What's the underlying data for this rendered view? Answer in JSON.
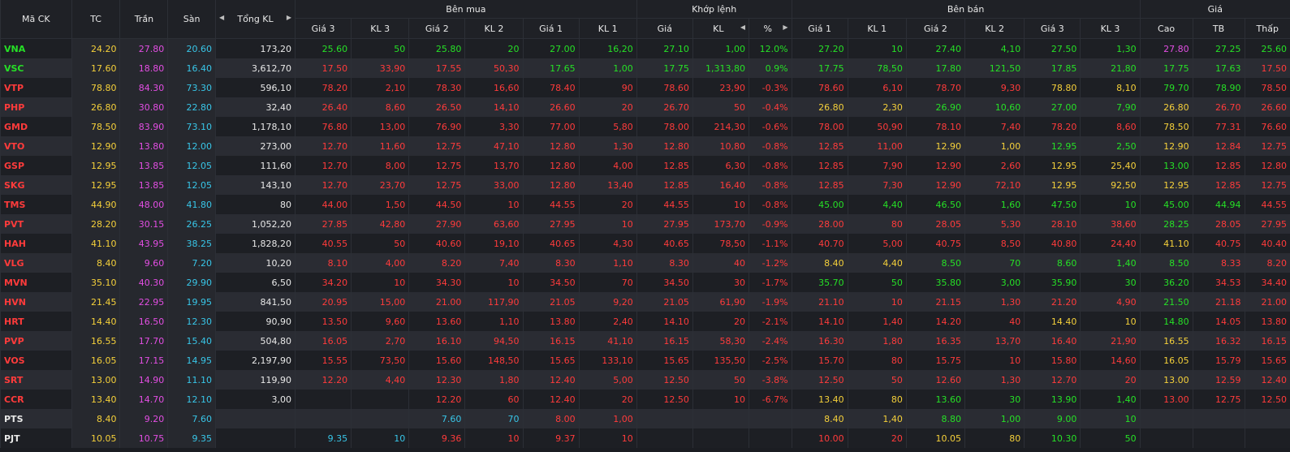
{
  "header": {
    "symbol": "Mã CK",
    "tc": "TC",
    "tran": "Trần",
    "san": "Sàn",
    "tong_kl": "Tổng KL",
    "ben_mua": "Bên mua",
    "khop_lenh": "Khớp lệnh",
    "ben_ban": "Bên bán",
    "gia_group": "Giá",
    "gia3": "Giá 3",
    "kl3": "KL 3",
    "gia2": "Giá 2",
    "kl2": "KL 2",
    "gia1": "Giá 1",
    "kl1": "KL 1",
    "khop_gia": "Giá",
    "khop_kl": "KL",
    "pct": "%",
    "cao": "Cao",
    "tb": "TB",
    "thap": "Thấp",
    "arrow_left": "◀",
    "arrow_right": "▶"
  },
  "colors": {
    "up": "#26e026",
    "down": "#ff3b3b",
    "ref": "#f5d03a",
    "ceil": "#e34ee3",
    "floor": "#38c6e8",
    "neutral": "#e8e8e8"
  },
  "rows": [
    {
      "sym": "VNA",
      "c": "u",
      "tc": "24.20",
      "tran": "27.80",
      "san": "20.60",
      "tkl": "173,20",
      "b3": "25.60",
      "b3c": "u",
      "bk3": "50",
      "b2": "25.80",
      "b2c": "u",
      "bk2": "20",
      "b1": "27.00",
      "b1c": "u",
      "bk1": "16,20",
      "mp": "27.10",
      "mpc": "u",
      "mk": "1,00",
      "pct": "12.0%",
      "a1": "27.20",
      "a1c": "u",
      "ak1": "10",
      "a2": "27.40",
      "a2c": "u",
      "ak2": "4,10",
      "a3": "27.50",
      "a3c": "u",
      "ak3": "1,30",
      "hi": "27.80",
      "hic": "c",
      "avg": "27.25",
      "avgc": "u",
      "lo": "25.60",
      "loc": "u"
    },
    {
      "sym": "VSC",
      "c": "u",
      "tc": "17.60",
      "tran": "18.80",
      "san": "16.40",
      "tkl": "3,612,70",
      "b3": "17.50",
      "b3c": "d",
      "bk3": "33,90",
      "b2": "17.55",
      "b2c": "d",
      "bk2": "50,30",
      "b1": "17.65",
      "b1c": "u",
      "bk1": "1,00",
      "mp": "17.75",
      "mpc": "u",
      "mk": "1,313,80",
      "pct": "0.9%",
      "a1": "17.75",
      "a1c": "u",
      "ak1": "78,50",
      "a2": "17.80",
      "a2c": "u",
      "ak2": "121,50",
      "a3": "17.85",
      "a3c": "u",
      "ak3": "21,80",
      "hi": "17.75",
      "hic": "u",
      "avg": "17.63",
      "avgc": "u",
      "lo": "17.50",
      "loc": "d"
    },
    {
      "sym": "VTP",
      "c": "d",
      "tc": "78.80",
      "tran": "84.30",
      "san": "73.30",
      "tkl": "596,10",
      "b3": "78.20",
      "b3c": "d",
      "bk3": "2,10",
      "b2": "78.30",
      "b2c": "d",
      "bk2": "16,60",
      "b1": "78.40",
      "b1c": "d",
      "bk1": "90",
      "mp": "78.60",
      "mpc": "d",
      "mk": "23,90",
      "pct": "-0.3%",
      "a1": "78.60",
      "a1c": "d",
      "ak1": "6,10",
      "a2": "78.70",
      "a2c": "d",
      "ak2": "9,30",
      "a3": "78.80",
      "a3c": "r",
      "ak3": "8,10",
      "hi": "79.70",
      "hic": "u",
      "avg": "78.90",
      "avgc": "u",
      "lo": "78.50",
      "loc": "d"
    },
    {
      "sym": "PHP",
      "c": "d",
      "tc": "26.80",
      "tran": "30.80",
      "san": "22.80",
      "tkl": "32,40",
      "b3": "26.40",
      "b3c": "d",
      "bk3": "8,60",
      "b2": "26.50",
      "b2c": "d",
      "bk2": "14,10",
      "b1": "26.60",
      "b1c": "d",
      "bk1": "20",
      "mp": "26.70",
      "mpc": "d",
      "mk": "50",
      "pct": "-0.4%",
      "a1": "26.80",
      "a1c": "r",
      "ak1": "2,30",
      "a2": "26.90",
      "a2c": "u",
      "ak2": "10,60",
      "a3": "27.00",
      "a3c": "u",
      "ak3": "7,90",
      "hi": "26.80",
      "hic": "r",
      "avg": "26.70",
      "avgc": "d",
      "lo": "26.60",
      "loc": "d"
    },
    {
      "sym": "GMD",
      "c": "d",
      "tc": "78.50",
      "tran": "83.90",
      "san": "73.10",
      "tkl": "1,178,10",
      "b3": "76.80",
      "b3c": "d",
      "bk3": "13,00",
      "b2": "76.90",
      "b2c": "d",
      "bk2": "3,30",
      "b1": "77.00",
      "b1c": "d",
      "bk1": "5,80",
      "mp": "78.00",
      "mpc": "d",
      "mk": "214,30",
      "pct": "-0.6%",
      "a1": "78.00",
      "a1c": "d",
      "ak1": "50,90",
      "a2": "78.10",
      "a2c": "d",
      "ak2": "7,40",
      "a3": "78.20",
      "a3c": "d",
      "ak3": "8,60",
      "hi": "78.50",
      "hic": "r",
      "avg": "77.31",
      "avgc": "d",
      "lo": "76.60",
      "loc": "d"
    },
    {
      "sym": "VTO",
      "c": "d",
      "tc": "12.90",
      "tran": "13.80",
      "san": "12.00",
      "tkl": "273,00",
      "b3": "12.70",
      "b3c": "d",
      "bk3": "11,60",
      "b2": "12.75",
      "b2c": "d",
      "bk2": "47,10",
      "b1": "12.80",
      "b1c": "d",
      "bk1": "1,30",
      "mp": "12.80",
      "mpc": "d",
      "mk": "10,80",
      "pct": "-0.8%",
      "a1": "12.85",
      "a1c": "d",
      "ak1": "11,00",
      "a2": "12.90",
      "a2c": "r",
      "ak2": "1,00",
      "a3": "12.95",
      "a3c": "u",
      "ak3": "2,50",
      "hi": "12.90",
      "hic": "r",
      "avg": "12.84",
      "avgc": "d",
      "lo": "12.75",
      "loc": "d"
    },
    {
      "sym": "GSP",
      "c": "d",
      "tc": "12.95",
      "tran": "13.85",
      "san": "12.05",
      "tkl": "111,60",
      "b3": "12.70",
      "b3c": "d",
      "bk3": "8,00",
      "b2": "12.75",
      "b2c": "d",
      "bk2": "13,70",
      "b1": "12.80",
      "b1c": "d",
      "bk1": "4,00",
      "mp": "12.85",
      "mpc": "d",
      "mk": "6,30",
      "pct": "-0.8%",
      "a1": "12.85",
      "a1c": "d",
      "ak1": "7,90",
      "a2": "12.90",
      "a2c": "d",
      "ak2": "2,60",
      "a3": "12.95",
      "a3c": "r",
      "ak3": "25,40",
      "hi": "13.00",
      "hic": "u",
      "avg": "12.85",
      "avgc": "d",
      "lo": "12.80",
      "loc": "d"
    },
    {
      "sym": "SKG",
      "c": "d",
      "tc": "12.95",
      "tran": "13.85",
      "san": "12.05",
      "tkl": "143,10",
      "b3": "12.70",
      "b3c": "d",
      "bk3": "23,70",
      "b2": "12.75",
      "b2c": "d",
      "bk2": "33,00",
      "b1": "12.80",
      "b1c": "d",
      "bk1": "13,40",
      "mp": "12.85",
      "mpc": "d",
      "mk": "16,40",
      "pct": "-0.8%",
      "a1": "12.85",
      "a1c": "d",
      "ak1": "7,30",
      "a2": "12.90",
      "a2c": "d",
      "ak2": "72,10",
      "a3": "12.95",
      "a3c": "r",
      "ak3": "92,50",
      "hi": "12.95",
      "hic": "r",
      "avg": "12.85",
      "avgc": "d",
      "lo": "12.75",
      "loc": "d"
    },
    {
      "sym": "TMS",
      "c": "d",
      "tc": "44.90",
      "tran": "48.00",
      "san": "41.80",
      "tkl": "80",
      "b3": "44.00",
      "b3c": "d",
      "bk3": "1,50",
      "b2": "44.50",
      "b2c": "d",
      "bk2": "10",
      "b1": "44.55",
      "b1c": "d",
      "bk1": "20",
      "mp": "44.55",
      "mpc": "d",
      "mk": "10",
      "pct": "-0.8%",
      "a1": "45.00",
      "a1c": "u",
      "ak1": "4,40",
      "a2": "46.50",
      "a2c": "u",
      "ak2": "1,60",
      "a3": "47.50",
      "a3c": "u",
      "ak3": "10",
      "hi": "45.00",
      "hic": "u",
      "avg": "44.94",
      "avgc": "u",
      "lo": "44.55",
      "loc": "d"
    },
    {
      "sym": "PVT",
      "c": "d",
      "tc": "28.20",
      "tran": "30.15",
      "san": "26.25",
      "tkl": "1,052,20",
      "b3": "27.85",
      "b3c": "d",
      "bk3": "42,80",
      "b2": "27.90",
      "b2c": "d",
      "bk2": "63,60",
      "b1": "27.95",
      "b1c": "d",
      "bk1": "10",
      "mp": "27.95",
      "mpc": "d",
      "mk": "173,70",
      "pct": "-0.9%",
      "a1": "28.00",
      "a1c": "d",
      "ak1": "80",
      "a2": "28.05",
      "a2c": "d",
      "ak2": "5,30",
      "a3": "28.10",
      "a3c": "d",
      "ak3": "38,60",
      "hi": "28.25",
      "hic": "u",
      "avg": "28.05",
      "avgc": "d",
      "lo": "27.95",
      "loc": "d"
    },
    {
      "sym": "HAH",
      "c": "d",
      "tc": "41.10",
      "tran": "43.95",
      "san": "38.25",
      "tkl": "1,828,20",
      "b3": "40.55",
      "b3c": "d",
      "bk3": "50",
      "b2": "40.60",
      "b2c": "d",
      "bk2": "19,10",
      "b1": "40.65",
      "b1c": "d",
      "bk1": "4,30",
      "mp": "40.65",
      "mpc": "d",
      "mk": "78,50",
      "pct": "-1.1%",
      "a1": "40.70",
      "a1c": "d",
      "ak1": "5,00",
      "a2": "40.75",
      "a2c": "d",
      "ak2": "8,50",
      "a3": "40.80",
      "a3c": "d",
      "ak3": "24,40",
      "hi": "41.10",
      "hic": "r",
      "avg": "40.75",
      "avgc": "d",
      "lo": "40.40",
      "loc": "d"
    },
    {
      "sym": "VLG",
      "c": "d",
      "tc": "8.40",
      "tran": "9.60",
      "san": "7.20",
      "tkl": "10,20",
      "b3": "8.10",
      "b3c": "d",
      "bk3": "4,00",
      "b2": "8.20",
      "b2c": "d",
      "bk2": "7,40",
      "b1": "8.30",
      "b1c": "d",
      "bk1": "1,10",
      "mp": "8.30",
      "mpc": "d",
      "mk": "40",
      "pct": "-1.2%",
      "a1": "8.40",
      "a1c": "r",
      "ak1": "4,40",
      "a2": "8.50",
      "a2c": "u",
      "ak2": "70",
      "a3": "8.60",
      "a3c": "u",
      "ak3": "1,40",
      "hi": "8.50",
      "hic": "u",
      "avg": "8.33",
      "avgc": "d",
      "lo": "8.20",
      "loc": "d"
    },
    {
      "sym": "MVN",
      "c": "d",
      "tc": "35.10",
      "tran": "40.30",
      "san": "29.90",
      "tkl": "6,50",
      "b3": "34.20",
      "b3c": "d",
      "bk3": "10",
      "b2": "34.30",
      "b2c": "d",
      "bk2": "10",
      "b1": "34.50",
      "b1c": "d",
      "bk1": "70",
      "mp": "34.50",
      "mpc": "d",
      "mk": "30",
      "pct": "-1.7%",
      "a1": "35.70",
      "a1c": "u",
      "ak1": "50",
      "a2": "35.80",
      "a2c": "u",
      "ak2": "3,00",
      "a3": "35.90",
      "a3c": "u",
      "ak3": "30",
      "hi": "36.20",
      "hic": "u",
      "avg": "34.53",
      "avgc": "d",
      "lo": "34.40",
      "loc": "d"
    },
    {
      "sym": "HVN",
      "c": "d",
      "tc": "21.45",
      "tran": "22.95",
      "san": "19.95",
      "tkl": "841,50",
      "b3": "20.95",
      "b3c": "d",
      "bk3": "15,00",
      "b2": "21.00",
      "b2c": "d",
      "bk2": "117,90",
      "b1": "21.05",
      "b1c": "d",
      "bk1": "9,20",
      "mp": "21.05",
      "mpc": "d",
      "mk": "61,90",
      "pct": "-1.9%",
      "a1": "21.10",
      "a1c": "d",
      "ak1": "10",
      "a2": "21.15",
      "a2c": "d",
      "ak2": "1,30",
      "a3": "21.20",
      "a3c": "d",
      "ak3": "4,90",
      "hi": "21.50",
      "hic": "u",
      "avg": "21.18",
      "avgc": "d",
      "lo": "21.00",
      "loc": "d"
    },
    {
      "sym": "HRT",
      "c": "d",
      "tc": "14.40",
      "tran": "16.50",
      "san": "12.30",
      "tkl": "90,90",
      "b3": "13.50",
      "b3c": "d",
      "bk3": "9,60",
      "b2": "13.60",
      "b2c": "d",
      "bk2": "1,10",
      "b1": "13.80",
      "b1c": "d",
      "bk1": "2,40",
      "mp": "14.10",
      "mpc": "d",
      "mk": "20",
      "pct": "-2.1%",
      "a1": "14.10",
      "a1c": "d",
      "ak1": "1,40",
      "a2": "14.20",
      "a2c": "d",
      "ak2": "40",
      "a3": "14.40",
      "a3c": "r",
      "ak3": "10",
      "hi": "14.80",
      "hic": "u",
      "avg": "14.05",
      "avgc": "d",
      "lo": "13.80",
      "loc": "d"
    },
    {
      "sym": "PVP",
      "c": "d",
      "tc": "16.55",
      "tran": "17.70",
      "san": "15.40",
      "tkl": "504,80",
      "b3": "16.05",
      "b3c": "d",
      "bk3": "2,70",
      "b2": "16.10",
      "b2c": "d",
      "bk2": "94,50",
      "b1": "16.15",
      "b1c": "d",
      "bk1": "41,10",
      "mp": "16.15",
      "mpc": "d",
      "mk": "58,30",
      "pct": "-2.4%",
      "a1": "16.30",
      "a1c": "d",
      "ak1": "1,80",
      "a2": "16.35",
      "a2c": "d",
      "ak2": "13,70",
      "a3": "16.40",
      "a3c": "d",
      "ak3": "21,90",
      "hi": "16.55",
      "hic": "r",
      "avg": "16.32",
      "avgc": "d",
      "lo": "16.15",
      "loc": "d"
    },
    {
      "sym": "VOS",
      "c": "d",
      "tc": "16.05",
      "tran": "17.15",
      "san": "14.95",
      "tkl": "2,197,90",
      "b3": "15.55",
      "b3c": "d",
      "bk3": "73,50",
      "b2": "15.60",
      "b2c": "d",
      "bk2": "148,50",
      "b1": "15.65",
      "b1c": "d",
      "bk1": "133,10",
      "mp": "15.65",
      "mpc": "d",
      "mk": "135,50",
      "pct": "-2.5%",
      "a1": "15.70",
      "a1c": "d",
      "ak1": "80",
      "a2": "15.75",
      "a2c": "d",
      "ak2": "10",
      "a3": "15.80",
      "a3c": "d",
      "ak3": "14,60",
      "hi": "16.05",
      "hic": "r",
      "avg": "15.79",
      "avgc": "d",
      "lo": "15.65",
      "loc": "d"
    },
    {
      "sym": "SRT",
      "c": "d",
      "tc": "13.00",
      "tran": "14.90",
      "san": "11.10",
      "tkl": "119,90",
      "b3": "12.20",
      "b3c": "d",
      "bk3": "4,40",
      "b2": "12.30",
      "b2c": "d",
      "bk2": "1,80",
      "b1": "12.40",
      "b1c": "d",
      "bk1": "5,00",
      "mp": "12.50",
      "mpc": "d",
      "mk": "50",
      "pct": "-3.8%",
      "a1": "12.50",
      "a1c": "d",
      "ak1": "50",
      "a2": "12.60",
      "a2c": "d",
      "ak2": "1,30",
      "a3": "12.70",
      "a3c": "d",
      "ak3": "20",
      "hi": "13.00",
      "hic": "r",
      "avg": "12.59",
      "avgc": "d",
      "lo": "12.40",
      "loc": "d"
    },
    {
      "sym": "CCR",
      "c": "d",
      "tc": "13.40",
      "tran": "14.70",
      "san": "12.10",
      "tkl": "3,00",
      "b3": "",
      "b3c": "d",
      "bk3": "",
      "b2": "12.20",
      "b2c": "d",
      "bk2": "60",
      "b1": "12.40",
      "b1c": "d",
      "bk1": "20",
      "mp": "12.50",
      "mpc": "d",
      "mk": "10",
      "pct": "-6.7%",
      "a1": "13.40",
      "a1c": "r",
      "ak1": "80",
      "a2": "13.60",
      "a2c": "u",
      "ak2": "30",
      "a3": "13.90",
      "a3c": "u",
      "ak3": "1,40",
      "hi": "13.00",
      "hic": "d",
      "avg": "12.75",
      "avgc": "d",
      "lo": "12.50",
      "loc": "d"
    },
    {
      "sym": "PTS",
      "c": "w",
      "tc": "8.40",
      "tran": "9.20",
      "san": "7.60",
      "tkl": "",
      "b3": "",
      "b3c": "w",
      "bk3": "",
      "b2": "7.60",
      "b2c": "f",
      "bk2": "70",
      "b1": "8.00",
      "b1c": "d",
      "bk1": "1,00",
      "mp": "",
      "mpc": "w",
      "mk": "",
      "pct": "",
      "a1": "8.40",
      "a1c": "r",
      "ak1": "1,40",
      "a2": "8.80",
      "a2c": "u",
      "ak2": "1,00",
      "a3": "9.00",
      "a3c": "u",
      "ak3": "10",
      "hi": "",
      "hic": "w",
      "avg": "",
      "avgc": "w",
      "lo": "",
      "loc": "w"
    },
    {
      "sym": "PJT",
      "c": "w",
      "tc": "10.05",
      "tran": "10.75",
      "san": "9.35",
      "tkl": "",
      "b3": "9.35",
      "b3c": "f",
      "bk3": "10",
      "b2": "9.36",
      "b2c": "d",
      "bk2": "10",
      "b1": "9.37",
      "b1c": "d",
      "bk1": "10",
      "mp": "",
      "mpc": "w",
      "mk": "",
      "pct": "",
      "a1": "10.00",
      "a1c": "d",
      "ak1": "20",
      "a2": "10.05",
      "a2c": "r",
      "ak2": "80",
      "a3": "10.30",
      "a3c": "u",
      "ak3": "50",
      "hi": "",
      "hic": "w",
      "avg": "",
      "avgc": "w",
      "lo": "",
      "loc": "w"
    }
  ]
}
